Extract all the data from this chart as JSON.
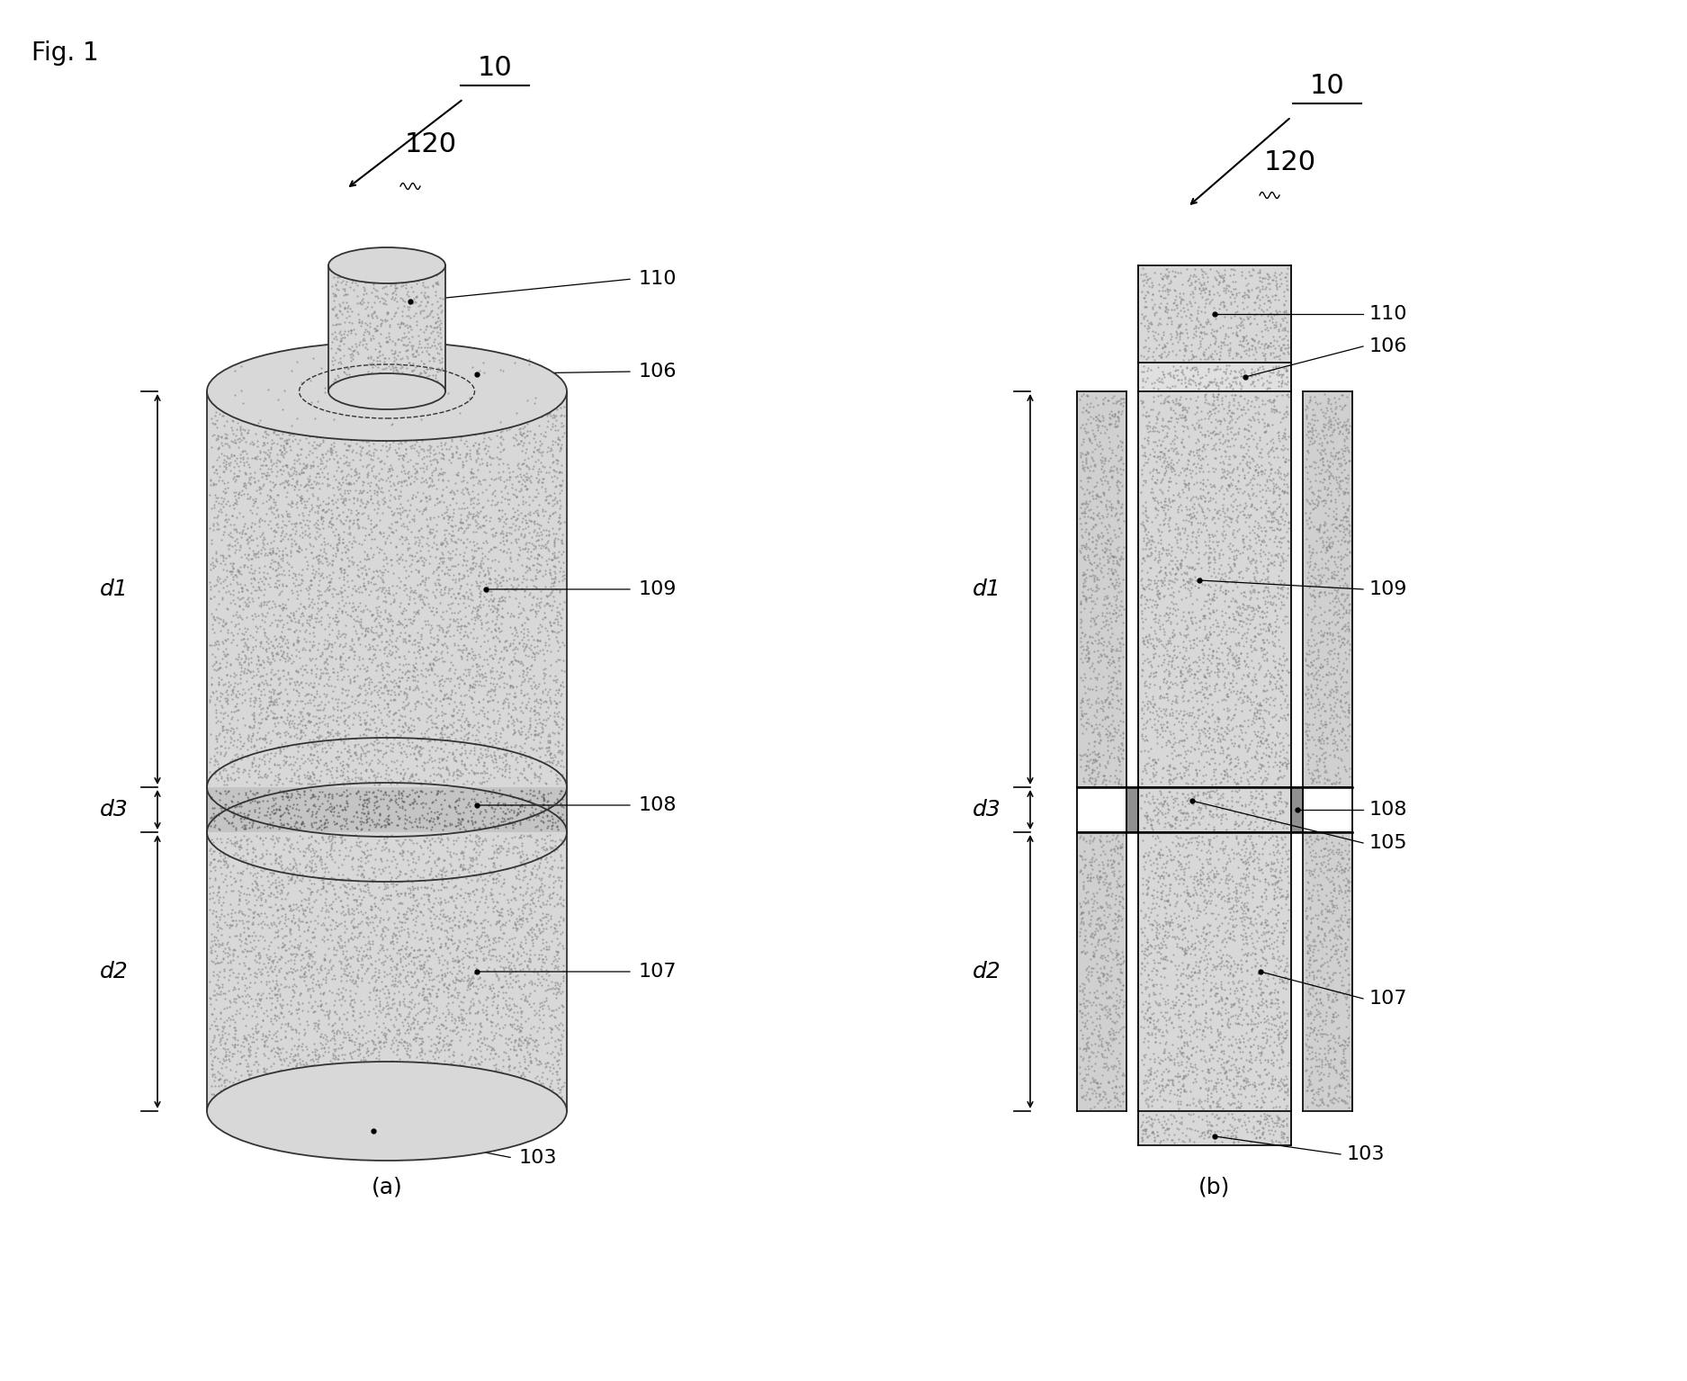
{
  "fig_label": "Fig. 1",
  "bg_color": "#ffffff",
  "label_color": "#000000",
  "sub_a_label": "(a)",
  "sub_b_label": "(b)",
  "ref_10_a": "10",
  "ref_10_b": "10",
  "ref_120_a": "120",
  "ref_120_b": "120",
  "ref_110": "110",
  "ref_106": "106",
  "ref_109": "109",
  "ref_108": "108",
  "ref_107": "107",
  "ref_103": "103",
  "ref_105": "105",
  "dim_d1": "d1",
  "dim_d2": "d2",
  "dim_d3": "d3",
  "line_color": "#000000",
  "font_size_ref": 16,
  "font_size_dim": 18,
  "font_size_fig": 20,
  "font_size_large": 22
}
